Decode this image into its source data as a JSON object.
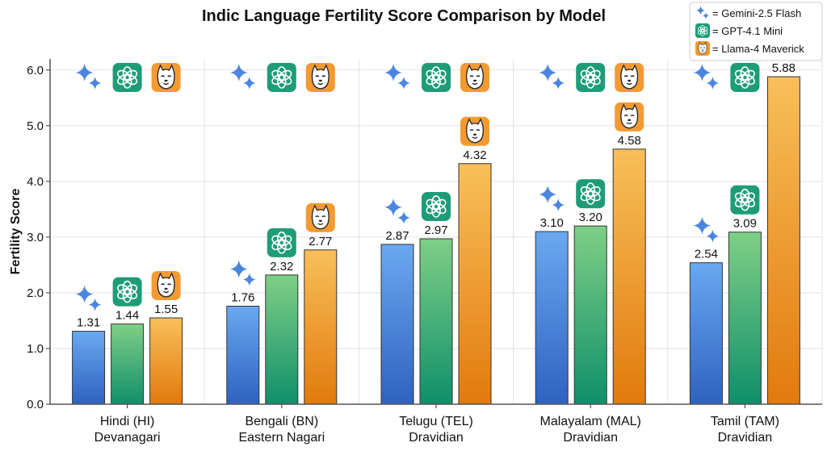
{
  "chart_data": {
    "type": "bar",
    "title": "Indic Language Fertility Score Comparison by Model",
    "xlabel": "",
    "ylabel": "Fertility Score",
    "ylim": [
      0,
      6.2
    ],
    "yticks": [
      0,
      1,
      2,
      3,
      4,
      5,
      6
    ],
    "ytick_labels": [
      "0.0",
      "1.0",
      "2.0",
      "3.0",
      "4.0",
      "5.0",
      "6.0"
    ],
    "grid": true,
    "legend_placement": "top-right",
    "categories": [
      {
        "name": "Hindi (HI)",
        "script": "Devanagari"
      },
      {
        "name": "Bengali (BN)",
        "script": "Eastern Nagari"
      },
      {
        "name": "Telugu (TEL)",
        "script": "Dravidian"
      },
      {
        "name": "Malayalam (MAL)",
        "script": "Dravidian"
      },
      {
        "name": "Tamil (TAM)",
        "script": "Dravidian"
      }
    ],
    "series": [
      {
        "name": "Gemini-2.5 Flash",
        "legend_label": "= Gemini-2.5 Flash",
        "icon": "gemini-sparkle-icon",
        "color_top": "#6aa8f0",
        "color_bottom": "#2f62c0",
        "values": [
          1.31,
          1.76,
          2.87,
          3.1,
          2.54
        ],
        "labels": [
          "1.31",
          "1.76",
          "2.87",
          "3.10",
          "2.54"
        ]
      },
      {
        "name": "GPT-4.1 Mini",
        "legend_label": "= GPT-4.1 Mini",
        "icon": "openai-logo-icon",
        "color_top": "#7fcf86",
        "color_bottom": "#0f8f6a",
        "values": [
          1.44,
          2.32,
          2.97,
          3.2,
          3.09
        ],
        "labels": [
          "1.44",
          "2.32",
          "2.97",
          "3.20",
          "3.09"
        ]
      },
      {
        "name": "Llama-4 Maverick",
        "legend_label": "= Llama-4 Maverick",
        "icon": "llama-face-icon",
        "color_top": "#f8bf5a",
        "color_bottom": "#e27a0c",
        "values": [
          1.55,
          2.77,
          4.32,
          4.58,
          5.88
        ],
        "labels": [
          "1.55",
          "2.77",
          "4.32",
          "4.58",
          "5.88"
        ]
      }
    ]
  },
  "colors": {
    "gpt_icon": "#1e9c78",
    "llama_icon": "#f39a33",
    "gemini_icon": "#4a86e0"
  }
}
